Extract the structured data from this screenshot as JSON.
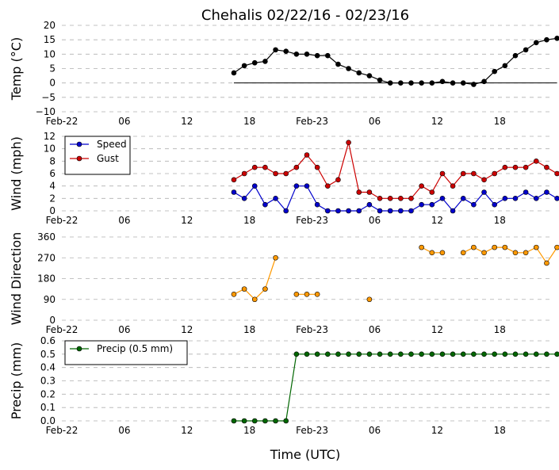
{
  "chart_data": {
    "type": "line",
    "title": "Chehalis 02/22/16 - 02/23/16",
    "xlabel": "Time (UTC)",
    "x_tick_labels": [
      "Feb-22",
      "06",
      "12",
      "18",
      "Feb-23",
      "06",
      "12",
      "18"
    ],
    "x_tick_hours": [
      0,
      6,
      12,
      18,
      24,
      30,
      36,
      42
    ],
    "xlim_hours": [
      0,
      47
    ],
    "panels": [
      {
        "ylabel": "Temp (°C)",
        "ylim": [
          -10,
          20
        ],
        "yticks": [
          -10,
          -5,
          0,
          5,
          10,
          15,
          20
        ],
        "ytick_labels": [
          "−10",
          "−5",
          "0",
          "5",
          "10",
          "15",
          "20"
        ],
        "zero_line": true,
        "series": [
          {
            "color": "#000000",
            "x": [
              16.5,
              17.5,
              18.5,
              19.5,
              20.5,
              21.5,
              22.5,
              23.5,
              24.5,
              25.5,
              26.5,
              27.5,
              28.5,
              29.5,
              30.5,
              31.5,
              32.5,
              33.5,
              34.5,
              35.5,
              36.5,
              37.5,
              38.5,
              39.5,
              40.5,
              41.5,
              42.5,
              43.5,
              44.5,
              45.5,
              46.5,
              47.5
            ],
            "y": [
              3.5,
              6,
              7,
              7.5,
              11.5,
              11,
              10,
              10,
              9.5,
              9.5,
              6.5,
              5,
              3.5,
              2.5,
              1,
              0,
              0,
              0,
              0,
              0,
              0.5,
              0,
              0,
              -0.5,
              0.5,
              4,
              6,
              9.5,
              11.5,
              14,
              15,
              15.5
            ]
          }
        ]
      },
      {
        "ylabel": "Wind (mph)",
        "ylim": [
          0,
          12
        ],
        "yticks": [
          0,
          2,
          4,
          6,
          8,
          10,
          12
        ],
        "ytick_labels": [
          "0",
          "2",
          "4",
          "6",
          "8",
          "10",
          "12"
        ],
        "legend": {
          "position": "top-left"
        },
        "series": [
          {
            "name": "Speed",
            "color": "#0000cc",
            "x": [
              16.5,
              17.5,
              18.5,
              19.5,
              20.5,
              21.5,
              22.5,
              23.5,
              24.5,
              25.5,
              26.5,
              27.5,
              28.5,
              29.5,
              30.5,
              31.5,
              32.5,
              33.5,
              34.5,
              35.5,
              36.5,
              37.5,
              38.5,
              39.5,
              40.5,
              41.5,
              42.5,
              43.5,
              44.5,
              45.5,
              46.5,
              47.5
            ],
            "y": [
              3,
              2,
              4,
              1,
              2,
              0,
              4,
              4,
              1,
              0,
              0,
              0,
              0,
              1,
              0,
              0,
              0,
              0,
              1,
              1,
              2,
              0,
              2,
              1,
              3,
              1,
              2,
              2,
              3,
              2,
              3,
              2
            ]
          },
          {
            "name": "Gust",
            "color": "#cc0000",
            "x": [
              16.5,
              17.5,
              18.5,
              19.5,
              20.5,
              21.5,
              22.5,
              23.5,
              24.5,
              25.5,
              26.5,
              27.5,
              28.5,
              29.5,
              30.5,
              31.5,
              32.5,
              33.5,
              34.5,
              35.5,
              36.5,
              37.5,
              38.5,
              39.5,
              40.5,
              41.5,
              42.5,
              43.5,
              44.5,
              45.5,
              46.5,
              47.5
            ],
            "y": [
              5,
              6,
              7,
              7,
              6,
              6,
              7,
              9,
              7,
              4,
              5,
              11,
              3,
              3,
              2,
              2,
              2,
              2,
              4,
              3,
              6,
              4,
              6,
              6,
              5,
              6,
              7,
              7,
              7,
              8,
              7,
              6
            ]
          }
        ]
      },
      {
        "ylabel": "Wind Direction",
        "ylim": [
          0,
          360
        ],
        "yticks": [
          0,
          90,
          180,
          270,
          360
        ],
        "ytick_labels": [
          "0",
          "90",
          "180",
          "270",
          "360"
        ],
        "series": [
          {
            "color": "#ff9900",
            "x": [
              16.5,
              17.5,
              18.5,
              19.5,
              20.5,
              22.5,
              23.5,
              24.5,
              29.5,
              34.5,
              35.5,
              36.5,
              38.5,
              39.5,
              40.5,
              41.5,
              42.5,
              43.5,
              44.5,
              45.5,
              46.5,
              47.5
            ],
            "y": [
              112,
              135,
              90,
              135,
              270,
              112,
              112,
              112,
              90,
              315,
              292,
              292,
              292,
              315,
              292,
              315,
              315,
              292,
              292,
              315,
              247,
              315
            ],
            "segments": [
              [
                0,
                4
              ],
              [
                5,
                7
              ],
              [
                8,
                8
              ],
              [
                9,
                11
              ],
              [
                12,
                21
              ]
            ]
          }
        ]
      },
      {
        "ylabel": "Precip (mm)",
        "ylim": [
          0,
          0.6
        ],
        "yticks": [
          0,
          0.1,
          0.2,
          0.3,
          0.4,
          0.5,
          0.6
        ],
        "ytick_labels": [
          "0.0",
          "0.1",
          "0.2",
          "0.3",
          "0.4",
          "0.5",
          "0.6"
        ],
        "legend": {
          "position": "top-left"
        },
        "series": [
          {
            "name": "Precip (0.5 mm)",
            "color": "#006600",
            "x": [
              16.5,
              17.5,
              18.5,
              19.5,
              20.5,
              21.5,
              22.5,
              23.5,
              24.5,
              25.5,
              26.5,
              27.5,
              28.5,
              29.5,
              30.5,
              31.5,
              32.5,
              33.5,
              34.5,
              35.5,
              36.5,
              37.5,
              38.5,
              39.5,
              40.5,
              41.5,
              42.5,
              43.5,
              44.5,
              45.5,
              46.5,
              47.5
            ],
            "y": [
              0,
              0,
              0,
              0,
              0,
              0,
              0.5,
              0.5,
              0.5,
              0.5,
              0.5,
              0.5,
              0.5,
              0.5,
              0.5,
              0.5,
              0.5,
              0.5,
              0.5,
              0.5,
              0.5,
              0.5,
              0.5,
              0.5,
              0.5,
              0.5,
              0.5,
              0.5,
              0.5,
              0.5,
              0.5,
              0.5
            ]
          }
        ]
      }
    ]
  }
}
